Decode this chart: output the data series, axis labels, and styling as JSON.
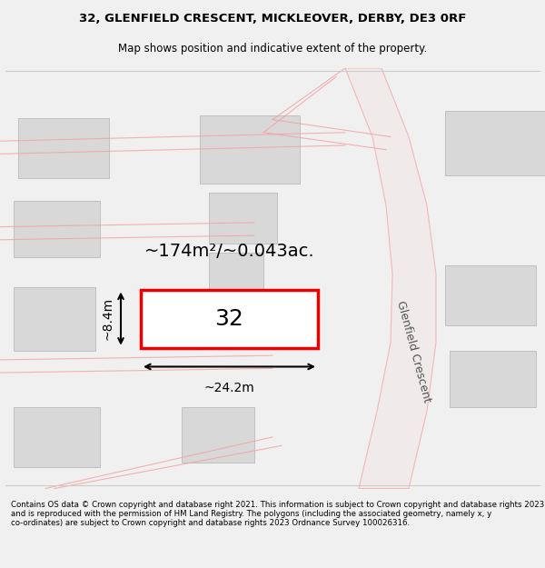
{
  "title_line1": "32, GLENFIELD CRESCENT, MICKLEOVER, DERBY, DE3 0RF",
  "title_line2": "Map shows position and indicative extent of the property.",
  "footer_text": "Contains OS data © Crown copyright and database right 2021. This information is subject to Crown copyright and database rights 2023 and is reproduced with the permission of HM Land Registry. The polygons (including the associated geometry, namely x, y co-ordinates) are subject to Crown copyright and database rights 2023 Ordnance Survey 100026316.",
  "bg_color": "#f5f5f5",
  "map_bg": "#ffffff",
  "road_color": "#f5a0a0",
  "road_fill": "#f0e8e8",
  "building_fill": "#d8d8d8",
  "building_edge": "#bbbbbb",
  "highlight_fill": "#ffffff",
  "highlight_edge": "#ee0000",
  "area_text": "~174m²/~0.043ac.",
  "width_text": "~24.2m",
  "height_text": "~8.4m",
  "number_text": "32",
  "road_label": "Glenfield Crescent"
}
